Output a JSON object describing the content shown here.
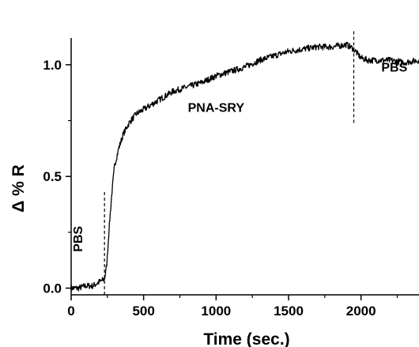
{
  "chart_data": {
    "type": "line",
    "xlabel": "Time (sec.)",
    "ylabel": "Δ % R",
    "xlim": [
      0,
      2400
    ],
    "ylim": [
      -0.03,
      1.12
    ],
    "xticks": [
      0,
      500,
      1000,
      1500,
      2000
    ],
    "xtick_labels": [
      "0",
      "500",
      "1000",
      "1500",
      "2000"
    ],
    "yticks": [
      0.0,
      0.5,
      1.0
    ],
    "ytick_labels": [
      "0.0",
      "0.5",
      "1.0"
    ],
    "grid": false,
    "series": [
      {
        "x": [
          0,
          50,
          100,
          150,
          200,
          230,
          245,
          260,
          280,
          300,
          330,
          360,
          400,
          450,
          500,
          600,
          700,
          800,
          900,
          1000,
          1100,
          1200,
          1300,
          1400,
          1500,
          1600,
          1700,
          1800,
          1900,
          1950,
          2000,
          2050,
          2100,
          2200,
          2300,
          2400
        ],
        "y": [
          0.0,
          0.0,
          0.01,
          0.01,
          0.03,
          0.04,
          0.1,
          0.25,
          0.42,
          0.55,
          0.63,
          0.69,
          0.74,
          0.78,
          0.8,
          0.84,
          0.88,
          0.9,
          0.92,
          0.95,
          0.97,
          0.99,
          1.02,
          1.04,
          1.06,
          1.07,
          1.08,
          1.08,
          1.09,
          1.07,
          1.03,
          1.02,
          1.02,
          1.02,
          1.01,
          1.02
        ]
      }
    ],
    "markers": [
      {
        "x": 230,
        "y_top": 0.43
      },
      {
        "x": 1950,
        "y_top": 1.15,
        "y_bottom": 0.73
      }
    ],
    "annotations": [
      {
        "text": "PBS",
        "x": 75,
        "y": 0.22,
        "rotation": -90
      },
      {
        "text": "PNA-SRY",
        "x": 1000,
        "y": 0.79,
        "rotation": 0
      },
      {
        "text": "PBS",
        "x": 2230,
        "y": 0.97,
        "rotation": 0
      }
    ]
  }
}
